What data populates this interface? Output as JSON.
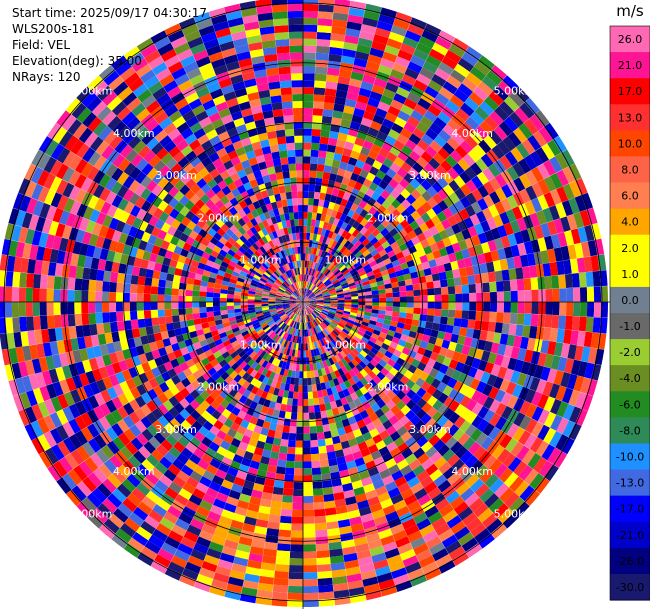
{
  "header": {
    "start_time": "Start time: 2025/09/17 04:30:17",
    "instrument": "WLS200s-181",
    "field": "Field: VEL",
    "elevation": "Elevation(deg): 35.00",
    "nrays": "NRays: 120"
  },
  "chart_data": {
    "type": "heatmap",
    "projection": "polar-ppi",
    "field": "VEL",
    "units": "m/s",
    "n_rays": 120,
    "elevation_deg": 35.0,
    "range_rings_km": [
      1,
      2,
      3,
      4,
      5
    ],
    "range_ring_labels": [
      "1.00km",
      "2.00km",
      "3.00km",
      "4.00km",
      "5.00km"
    ],
    "max_range_km": 5.1,
    "colorbar": {
      "label": "m/s",
      "tick_labels": [
        "26.0",
        "21.0",
        "17.0",
        "13.0",
        "10.0",
        "8.0",
        "6.0",
        "4.0",
        "2.0",
        "1.0",
        "0.0",
        "-1.0",
        "-2.0",
        "-4.0",
        "-6.0",
        "-8.0",
        "-10.0",
        "-13.0",
        "-17.0",
        "-21.0",
        "-26.0",
        "-30.0"
      ],
      "bins": [
        {
          "lo": 26,
          "hi": 30,
          "color": "#ff69b4"
        },
        {
          "lo": 21,
          "hi": 26,
          "color": "#ff1493"
        },
        {
          "lo": 17,
          "hi": 21,
          "color": "#ff0000"
        },
        {
          "lo": 13,
          "hi": 17,
          "color": "#ff3030"
        },
        {
          "lo": 10,
          "hi": 13,
          "color": "#ff4500"
        },
        {
          "lo": 8,
          "hi": 10,
          "color": "#ff6347"
        },
        {
          "lo": 6,
          "hi": 8,
          "color": "#ff7f50"
        },
        {
          "lo": 4,
          "hi": 6,
          "color": "#ffa500"
        },
        {
          "lo": 2,
          "hi": 4,
          "color": "#ffff00"
        },
        {
          "lo": 1,
          "hi": 2,
          "color": "#ffff00"
        },
        {
          "lo": 0,
          "hi": 1,
          "color": "#708090"
        },
        {
          "lo": -1,
          "hi": 0,
          "color": "#696969"
        },
        {
          "lo": -2,
          "hi": -1,
          "color": "#9acd32"
        },
        {
          "lo": -4,
          "hi": -2,
          "color": "#6b8e23"
        },
        {
          "lo": -6,
          "hi": -4,
          "color": "#228b22"
        },
        {
          "lo": -8,
          "hi": -6,
          "color": "#2e8b57"
        },
        {
          "lo": -10,
          "hi": -8,
          "color": "#1e90ff"
        },
        {
          "lo": -13,
          "hi": -10,
          "color": "#4169e1"
        },
        {
          "lo": -17,
          "hi": -13,
          "color": "#0000ff"
        },
        {
          "lo": -21,
          "hi": -17,
          "color": "#0000cd"
        },
        {
          "lo": -26,
          "hi": -21,
          "color": "#000080"
        },
        {
          "lo": -30,
          "hi": -26,
          "color": "#191970"
        }
      ]
    }
  }
}
